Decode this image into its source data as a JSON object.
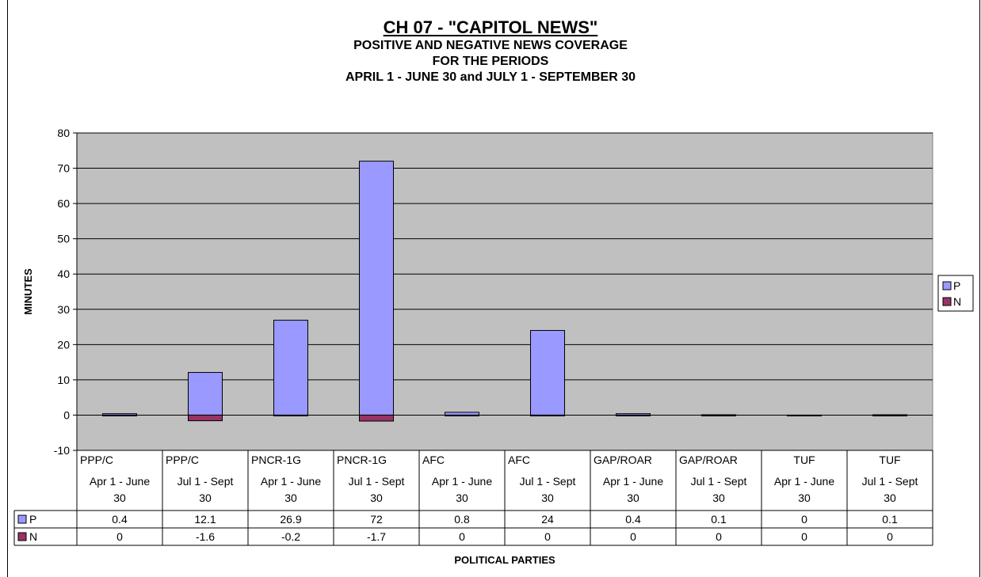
{
  "chart_data": {
    "type": "bar",
    "title": "CH 07 - \"CAPITOL NEWS\"",
    "subtitle_lines": [
      "POSITIVE AND NEGATIVE NEWS COVERAGE",
      "FOR THE PERIODS",
      "APRIL 1 - JUNE 30 and JULY 1 - SEPTEMBER 30"
    ],
    "ylabel": "MINUTES",
    "xlabel": "POLITICAL PARTIES",
    "ylim": [
      -10,
      80
    ],
    "yticks": [
      -10,
      0,
      10,
      20,
      30,
      40,
      50,
      60,
      70,
      80
    ],
    "grid": true,
    "legend_position": "right",
    "categories": [
      {
        "party": "PPP/C",
        "period": "Apr 1 - June 30"
      },
      {
        "party": "PPP/C",
        "period": "Jul 1 - Sept 30"
      },
      {
        "party": "PNCR-1G",
        "period": "Apr 1 - June 30"
      },
      {
        "party": "PNCR-1G",
        "period": "Jul 1 - Sept 30"
      },
      {
        "party": "AFC",
        "period": "Apr 1 - June 30"
      },
      {
        "party": "AFC",
        "period": "Jul 1 - Sept 30"
      },
      {
        "party": "GAP/ROAR",
        "period": "Apr 1 - June 30"
      },
      {
        "party": "GAP/ROAR",
        "period": "Jul 1 - Sept 30"
      },
      {
        "party": "TUF",
        "period": "Apr 1 - June 30"
      },
      {
        "party": "TUF",
        "period": "Jul 1 - Sept 30"
      }
    ],
    "series": [
      {
        "name": "P",
        "color": "#9999ff",
        "values": [
          0.4,
          12.1,
          26.9,
          72,
          0.8,
          24,
          0.4,
          0.1,
          0,
          0.1
        ],
        "labels": [
          "0.4",
          "12.1",
          "26.9",
          "72",
          "0.8",
          "24",
          "0.4",
          "0.1",
          "0",
          "0.1"
        ]
      },
      {
        "name": "N",
        "color": "#993366",
        "values": [
          0,
          -1.6,
          -0.2,
          -1.7,
          0,
          0,
          0,
          0,
          0,
          0
        ],
        "labels": [
          "0",
          "-1.6",
          "-0.2",
          "-1.7",
          "0",
          "0",
          "0",
          "0",
          "0",
          "0"
        ]
      }
    ],
    "plot_background": "#c0c0c0"
  }
}
